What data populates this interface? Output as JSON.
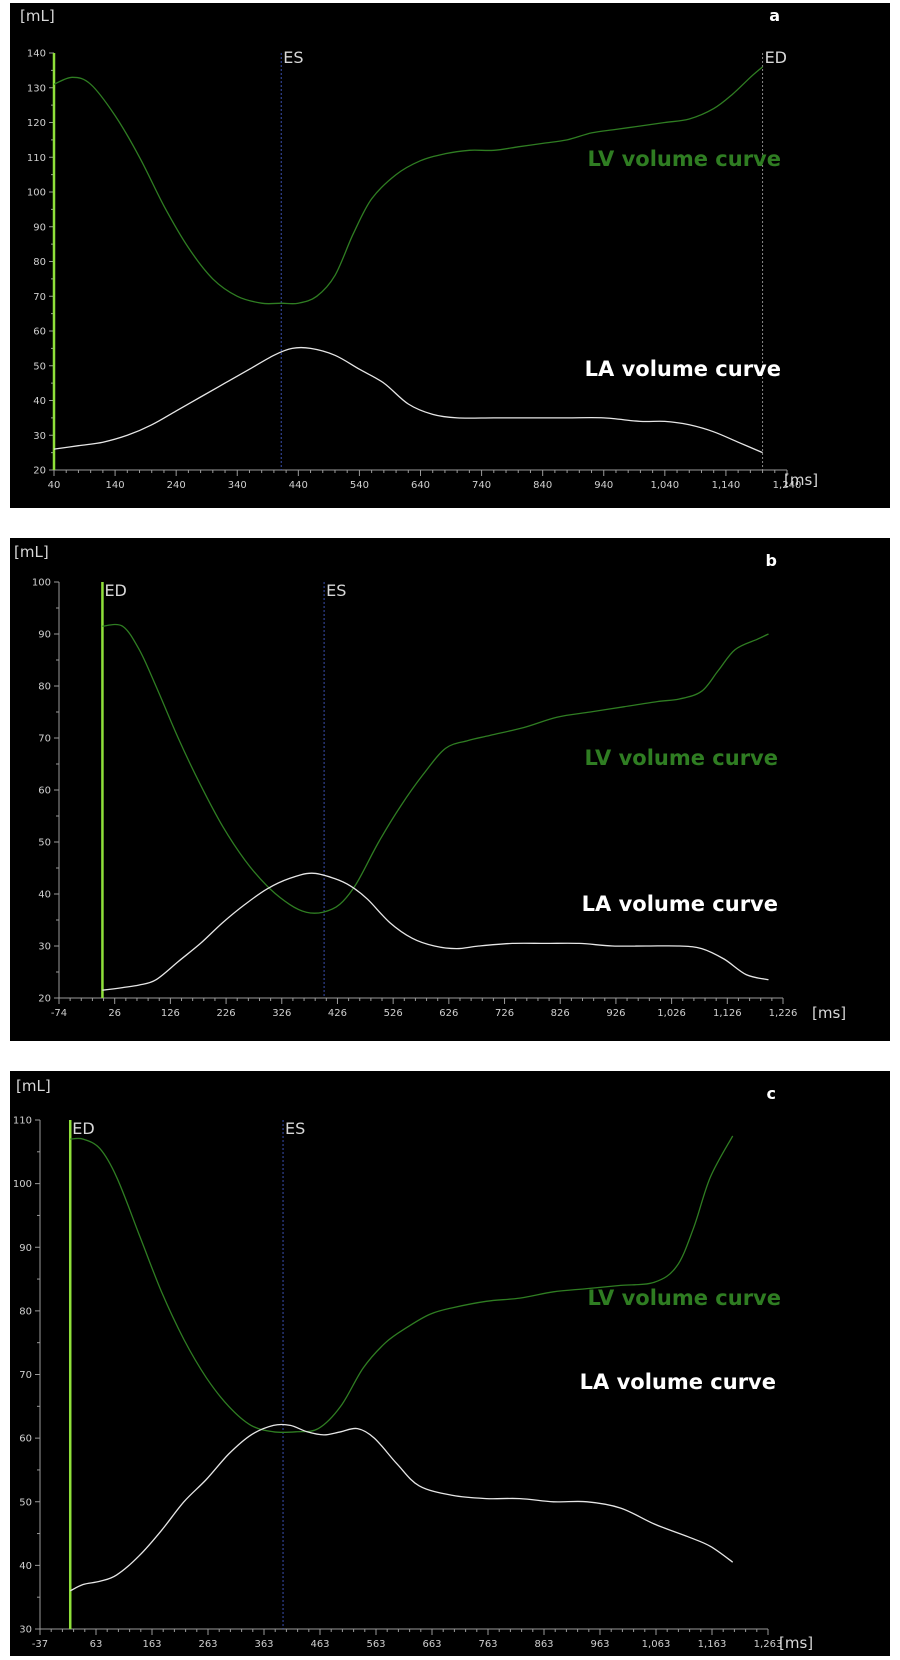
{
  "chart_data": [
    {
      "type": "line",
      "panel_label": "a",
      "ylabel": "[mL]",
      "xlabel": "[ms]",
      "xlim": [
        40,
        1240
      ],
      "ylim": [
        20,
        140
      ],
      "x_ticks": [
        40,
        140,
        240,
        340,
        440,
        540,
        640,
        740,
        840,
        940,
        1040,
        1140,
        1240
      ],
      "x_tick_labels": [
        "40",
        "140",
        "240",
        "340",
        "440",
        "540",
        "640",
        "740",
        "840",
        "940",
        "1,040",
        "1,140",
        "1,240"
      ],
      "y_ticks": [
        20,
        30,
        40,
        50,
        60,
        70,
        80,
        90,
        100,
        110,
        120,
        130,
        140
      ],
      "y_tick_labels": [
        "20",
        "30",
        "40",
        "50",
        "60",
        "70",
        "80",
        "90",
        "100",
        "110",
        "120",
        "130",
        "140"
      ],
      "markers": [
        {
          "label": "ED",
          "x": 40,
          "line_label": false,
          "color": "#8fe03a"
        },
        {
          "label": "ES",
          "x": 412,
          "line_label": true,
          "color": "#3a4fae"
        },
        {
          "label": "ED",
          "x": 1200,
          "line_label": true,
          "color": "#8a8a8a"
        }
      ],
      "series": [
        {
          "name": "LV volume curve",
          "color": "#2f7d22",
          "x": [
            40,
            70,
            100,
            140,
            180,
            220,
            260,
            300,
            340,
            380,
            412,
            440,
            470,
            500,
            530,
            560,
            600,
            640,
            680,
            720,
            760,
            800,
            840,
            880,
            920,
            960,
            1000,
            1040,
            1080,
            1120,
            1150,
            1180,
            1200
          ],
          "y": [
            131,
            133,
            131,
            122,
            110,
            96,
            84,
            75,
            70,
            68,
            68,
            68,
            70,
            76,
            88,
            98,
            105,
            109,
            111,
            112,
            112,
            113,
            114,
            115,
            117,
            118,
            119,
            120,
            121,
            124,
            128,
            133,
            136
          ]
        },
        {
          "name": "LA volume curve",
          "color": "#e6e6e6",
          "x": [
            40,
            80,
            120,
            160,
            200,
            240,
            280,
            320,
            360,
            400,
            430,
            460,
            500,
            540,
            580,
            620,
            660,
            700,
            760,
            820,
            880,
            940,
            1000,
            1040,
            1080,
            1120,
            1160,
            1200
          ],
          "y": [
            26,
            27,
            28,
            30,
            33,
            37,
            41,
            45,
            49,
            53,
            55,
            55,
            53,
            49,
            45,
            39,
            36,
            35,
            35,
            35,
            35,
            35,
            34,
            34,
            33,
            31,
            28,
            25
          ]
        }
      ]
    },
    {
      "type": "line",
      "panel_label": "b",
      "ylabel": "[mL]",
      "xlabel": "[ms]",
      "xlim": [
        -74,
        1226
      ],
      "ylim": [
        20,
        100
      ],
      "x_ticks": [
        -74,
        26,
        126,
        226,
        326,
        426,
        526,
        626,
        726,
        826,
        926,
        1026,
        1126,
        1226
      ],
      "x_tick_labels": [
        "-74",
        "26",
        "126",
        "226",
        "326",
        "426",
        "526",
        "626",
        "726",
        "826",
        "926",
        "1,026",
        "1,126",
        "1,226"
      ],
      "y_ticks": [
        20,
        30,
        40,
        50,
        60,
        70,
        80,
        90,
        100
      ],
      "y_tick_labels": [
        "20",
        "30",
        "40",
        "50",
        "60",
        "70",
        "80",
        "90",
        "100"
      ],
      "markers": [
        {
          "label": "ED",
          "x": 4,
          "line_label": true,
          "color": "#8fe03a"
        },
        {
          "label": "ES",
          "x": 402,
          "line_label": true,
          "color": "#3a4fae"
        }
      ],
      "series": [
        {
          "name": "LV volume curve",
          "color": "#2f7d22",
          "x": [
            4,
            40,
            70,
            100,
            140,
            180,
            220,
            260,
            300,
            340,
            370,
            400,
            430,
            460,
            500,
            540,
            580,
            620,
            660,
            700,
            760,
            820,
            880,
            940,
            1000,
            1040,
            1080,
            1110,
            1140,
            1180,
            1200
          ],
          "y": [
            91.5,
            91.5,
            87,
            80,
            70,
            61,
            53,
            46.5,
            41.5,
            38,
            36.5,
            36.5,
            38,
            42,
            50,
            57,
            63,
            68,
            69.5,
            70.5,
            72,
            74,
            75,
            76,
            77,
            77.5,
            79,
            83,
            87,
            89,
            90
          ]
        },
        {
          "name": "LA volume curve",
          "color": "#e6e6e6",
          "x": [
            4,
            40,
            70,
            100,
            140,
            180,
            220,
            260,
            300,
            340,
            380,
            420,
            450,
            480,
            520,
            560,
            600,
            640,
            680,
            740,
            800,
            860,
            920,
            980,
            1040,
            1080,
            1120,
            1160,
            1200
          ],
          "y": [
            21.5,
            22,
            22.5,
            23.5,
            27,
            30.5,
            34.5,
            38,
            41,
            43,
            44,
            43,
            41.5,
            39,
            34.5,
            31.5,
            30,
            29.5,
            30,
            30.5,
            30.5,
            30.5,
            30,
            30,
            30,
            29.5,
            27.5,
            24.5,
            23.5
          ]
        }
      ]
    },
    {
      "type": "line",
      "panel_label": "c",
      "ylabel": "[mL]",
      "xlabel": "[ms]",
      "xlim": [
        -37,
        1263
      ],
      "ylim": [
        30,
        110
      ],
      "x_ticks": [
        -37,
        63,
        163,
        263,
        363,
        463,
        563,
        663,
        763,
        863,
        963,
        1063,
        1163,
        1263
      ],
      "x_tick_labels": [
        "-37",
        "63",
        "163",
        "263",
        "363",
        "463",
        "563",
        "663",
        "763",
        "863",
        "963",
        "1,063",
        "1,163",
        "1,263"
      ],
      "y_ticks": [
        30,
        40,
        50,
        60,
        70,
        80,
        90,
        100,
        110
      ],
      "y_tick_labels": [
        "30",
        "40",
        "50",
        "60",
        "70",
        "80",
        "90",
        "100",
        "110"
      ],
      "markers": [
        {
          "label": "ED",
          "x": 17,
          "line_label": true,
          "color": "#8fe03a"
        },
        {
          "label": "ES",
          "x": 397,
          "line_label": true,
          "color": "#3a4fae"
        }
      ],
      "series": [
        {
          "name": "LV volume curve",
          "color": "#2f7d22",
          "x": [
            17,
            40,
            70,
            100,
            140,
            180,
            220,
            260,
            300,
            340,
            380,
            420,
            460,
            500,
            540,
            580,
            620,
            660,
            700,
            760,
            820,
            880,
            940,
            1000,
            1060,
            1100,
            1130,
            1160,
            1200
          ],
          "y": [
            107,
            107,
            105.5,
            101,
            92,
            83,
            75.5,
            69.5,
            65,
            62,
            61,
            61,
            61.5,
            65,
            71,
            75,
            77.5,
            79.5,
            80.5,
            81.5,
            82,
            83,
            83.5,
            84,
            84.5,
            87,
            93,
            101,
            107.5
          ]
        },
        {
          "name": "LA volume curve",
          "color": "#e6e6e6",
          "x": [
            17,
            40,
            70,
            100,
            140,
            180,
            220,
            260,
            300,
            340,
            380,
            410,
            440,
            470,
            500,
            530,
            560,
            600,
            640,
            700,
            760,
            820,
            880,
            940,
            1000,
            1060,
            1120,
            1160,
            1200
          ],
          "y": [
            36,
            37,
            37.5,
            38.5,
            41.5,
            45.5,
            50,
            53.5,
            57.5,
            60.5,
            62,
            62,
            61,
            60.5,
            61,
            61.5,
            60,
            56,
            52.5,
            51,
            50.5,
            50.5,
            50,
            50,
            49,
            46.5,
            44.5,
            43,
            40.5
          ]
        }
      ]
    }
  ]
}
